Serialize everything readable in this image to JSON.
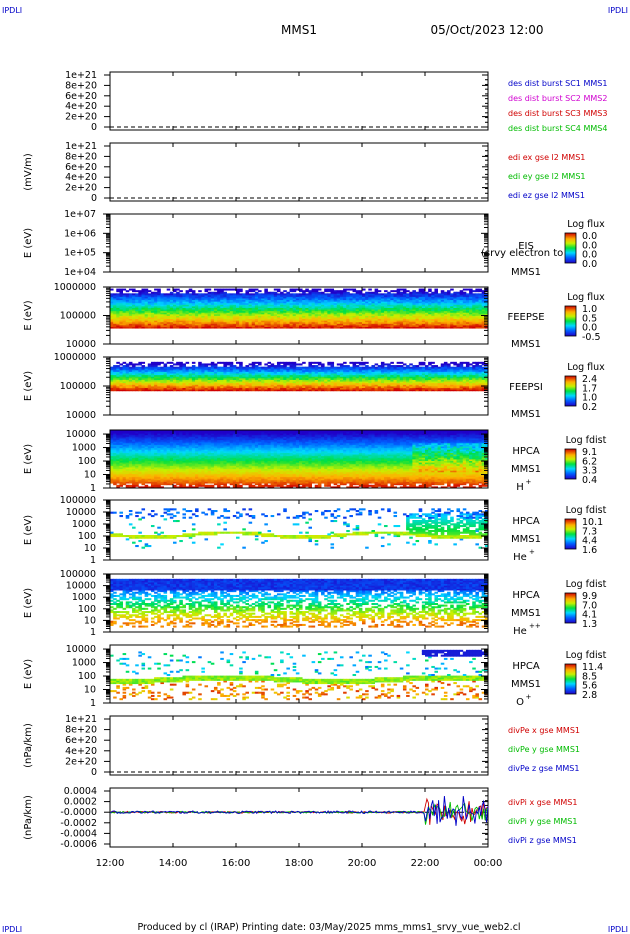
{
  "header": {
    "corner_label": "IPDLI",
    "spacecraft": "MMS1",
    "datetime": "05/Oct/2023 12:00"
  },
  "footer": {
    "text": "Produced by cl (IRAP)   Printing date: 03/May/2025   mms_mms1_srvy_vue_web2.cl"
  },
  "colors": {
    "red": "#d00000",
    "green": "#00bb00",
    "blue": "#0000c8",
    "magenta": "#d000d0"
  },
  "chart_data": {
    "type": "heatmap",
    "x_axis": {
      "ticks": [
        "12:00",
        "14:00",
        "16:00",
        "18:00",
        "20:00",
        "22:00",
        "00:00"
      ],
      "range_hours": [
        12,
        24
      ]
    },
    "panels": [
      {
        "id": "density",
        "kind": "line",
        "ylabel": "",
        "ticks": [
          "1e+21",
          "8e+20",
          "6e+20",
          "4e+20",
          "2e+20",
          "0"
        ],
        "ylim": [
          0,
          1e+21
        ],
        "legend": [
          {
            "text": "des dist burst SC1 MMS1",
            "color": "#0000c8"
          },
          {
            "text": "des dist burst SC2 MMS2",
            "color": "#d000d0"
          },
          {
            "text": "des dist burst SC3 MMS3",
            "color": "#d00000"
          },
          {
            "text": "des dist burst SC4 MMS4",
            "color": "#00bb00"
          }
        ]
      },
      {
        "id": "edi",
        "kind": "line",
        "ylabel": "(mV/m)",
        "ticks": [
          "1e+21",
          "8e+20",
          "6e+20",
          "4e+20",
          "2e+20",
          "0"
        ],
        "ylim": [
          0,
          1e+21
        ],
        "legend": [
          {
            "text": "edi ex gse l2 MMS1",
            "color": "#d00000"
          },
          {
            "text": "edi ey gse l2 MMS1",
            "color": "#00bb00"
          },
          {
            "text": "edi ez gse l2 MMS1",
            "color": "#0000c8"
          }
        ]
      },
      {
        "id": "eis",
        "kind": "spectrogram",
        "ylabel": "E (eV)",
        "ticks": [
          "1e+07",
          "1e+06",
          "1e+05",
          "1e+04"
        ],
        "log_range": [
          4,
          7
        ],
        "labels": [
          "EIS",
          "MMS1"
        ],
        "overlay_text": "(srvy electron to",
        "cbar_title": "Log flux",
        "cbar_values": [
          "0.0",
          "0.0",
          "0.0",
          "0.0"
        ],
        "data": {
          "present": false
        }
      },
      {
        "id": "feeps_e",
        "kind": "spectrogram",
        "ylabel": "E (eV)",
        "ticks": [
          "1000000",
          "100000",
          "10000"
        ],
        "log_range": [
          4,
          6
        ],
        "labels": [
          "FEEPSE",
          "MMS1"
        ],
        "cbar_title": "Log flux",
        "cbar_values": [
          "1.0",
          "0.5",
          "0.0",
          "-0.5"
        ],
        "data": {
          "present": true,
          "pattern": "hi_low",
          "low_log_e": 4.55,
          "high_log_e": 5.85,
          "log_value_range": [
            -0.5,
            1.0
          ]
        }
      },
      {
        "id": "feeps_i",
        "kind": "spectrogram",
        "ylabel": "E (eV)",
        "ticks": [
          "1000000",
          "100000",
          "10000"
        ],
        "log_range": [
          4,
          6
        ],
        "labels": [
          "FEEPSI",
          "MMS1"
        ],
        "cbar_title": "Log flux",
        "cbar_values": [
          "2.4",
          "1.7",
          "1.0",
          "0.2"
        ],
        "data": {
          "present": true,
          "pattern": "hi_low",
          "low_log_e": 4.85,
          "high_log_e": 5.75,
          "log_value_range": [
            0.2,
            2.4
          ]
        }
      },
      {
        "id": "hpca_h",
        "kind": "spectrogram",
        "ylabel": "E (eV)",
        "ticks": [
          "10000",
          "1000",
          "100",
          "10",
          "1"
        ],
        "log_range": [
          0,
          4.3
        ],
        "labels": [
          "HPCA",
          "MMS1"
        ],
        "species": "H",
        "charge": "+",
        "cbar_title": "Log fdist",
        "cbar_values": [
          "9.1",
          "6.2",
          "3.3",
          "0.4"
        ],
        "data": {
          "present": true,
          "pattern": "full",
          "log_value_range": [
            0.4,
            9.1
          ]
        }
      },
      {
        "id": "hpca_he1",
        "kind": "spectrogram",
        "ylabel": "E (eV)",
        "ticks": [
          "100000",
          "10000",
          "1000",
          "100",
          "10",
          "1"
        ],
        "log_range": [
          0,
          5
        ],
        "labels": [
          "HPCA",
          "MMS1"
        ],
        "species": "He",
        "charge": "+",
        "cbar_title": "Log fdist",
        "cbar_values": [
          "10.1",
          "7.3",
          "4.4",
          "1.6"
        ],
        "data": {
          "present": true,
          "pattern": "sparse",
          "log_value_range": [
            1.6,
            10.1
          ]
        }
      },
      {
        "id": "hpca_he2",
        "kind": "spectrogram",
        "ylabel": "E (eV)",
        "ticks": [
          "100000",
          "10000",
          "1000",
          "100",
          "10",
          "1"
        ],
        "log_range": [
          0,
          5
        ],
        "labels": [
          "HPCA",
          "MMS1"
        ],
        "species": "He",
        "charge": "++",
        "cbar_title": "Log fdist",
        "cbar_values": [
          "9.9",
          "7.0",
          "4.1",
          "1.3"
        ],
        "data": {
          "present": true,
          "pattern": "medium",
          "log_value_range": [
            1.3,
            9.9
          ]
        }
      },
      {
        "id": "hpca_o",
        "kind": "spectrogram",
        "ylabel": "E (eV)",
        "ticks": [
          "10000",
          "1000",
          "100",
          "10",
          "1"
        ],
        "log_range": [
          0,
          4.3
        ],
        "labels": [
          "HPCA",
          "MMS1"
        ],
        "species": "O",
        "charge": "+",
        "cbar_title": "Log fdist",
        "cbar_values": [
          "11.4",
          "8.5",
          "5.6",
          "2.8"
        ],
        "data": {
          "present": true,
          "pattern": "sparse_o",
          "log_value_range": [
            2.8,
            11.4
          ]
        }
      },
      {
        "id": "divpe",
        "kind": "line",
        "ylabel": "(nPa/km)",
        "ticks": [
          "1e+21",
          "8e+20",
          "6e+20",
          "4e+20",
          "2e+20",
          "0"
        ],
        "ylim": [
          0,
          1e+21
        ],
        "legend": [
          {
            "text": "divPe x gse MMS1",
            "color": "#d00000"
          },
          {
            "text": "divPe y gse MMS1",
            "color": "#00bb00"
          },
          {
            "text": "divPe z gse MMS1",
            "color": "#0000c8"
          }
        ]
      },
      {
        "id": "divpi",
        "kind": "line",
        "ylabel": "(nPa/km)",
        "ticks": [
          "0.0004",
          "0.0002",
          "-0.0000",
          "-0.0002",
          "-0.0004",
          "-0.0006"
        ],
        "ylim": [
          -0.0006,
          0.0004
        ],
        "legend": [
          {
            "text": "divPi x gse MMS1",
            "color": "#d00000"
          },
          {
            "text": "divPi y gse MMS1",
            "color": "#00bb00"
          },
          {
            "text": "divPi z gse MMS1",
            "color": "#0000c8"
          }
        ],
        "series_noise": {
          "baseline": 0.0,
          "quiet_amplitude": 2e-05,
          "active_after_hour": 22.0,
          "active_amplitude": 0.00025
        }
      }
    ]
  }
}
